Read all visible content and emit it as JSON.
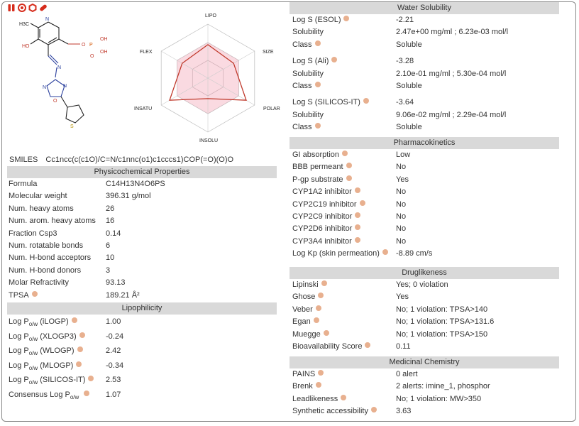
{
  "badges": [
    "pair-icon",
    "target-icon",
    "hexagon-icon",
    "pill-icon"
  ],
  "molecule": {
    "atom_labels": [
      "H3C",
      "N",
      "HO",
      "O",
      "P",
      "OH",
      "OH",
      "O",
      "N",
      "N",
      "N",
      "O",
      "S"
    ]
  },
  "radar": {
    "labels": [
      "LIPO",
      "SIZE",
      "POLAR",
      "INSOLU",
      "INSATU",
      "FLEX"
    ],
    "values": [
      0.62,
      0.55,
      0.82,
      0.38,
      0.82,
      0.55
    ]
  },
  "smiles": {
    "label": "SMILES",
    "value": "Cc1ncc(c(c1O)/C=N/c1nnc(o1)c1cccs1)COP(=O)(O)O"
  },
  "physchem": {
    "title": "Physicochemical Properties",
    "rows": [
      {
        "k": "Formula",
        "v": "C14H13N4O6PS"
      },
      {
        "k": "Molecular weight",
        "v": "396.31 g/mol"
      },
      {
        "k": "Num. heavy atoms",
        "v": "26"
      },
      {
        "k": "Num. arom. heavy atoms",
        "v": "16"
      },
      {
        "k": "Fraction Csp3",
        "v": "0.14"
      },
      {
        "k": "Num. rotatable bonds",
        "v": "6"
      },
      {
        "k": "Num. H-bond acceptors",
        "v": "10"
      },
      {
        "k": "Num. H-bond donors",
        "v": "3"
      },
      {
        "k": "Molar Refractivity",
        "v": "93.13"
      },
      {
        "k": "TPSA",
        "v": "189.21 Å²",
        "info": true
      }
    ]
  },
  "lipo": {
    "title": "Lipophilicity",
    "rows": [
      {
        "k": "Log P",
        "sub": "o/w",
        "method": "(iLOGP)",
        "v": "1.00"
      },
      {
        "k": "Log P",
        "sub": "o/w",
        "method": "(XLOGP3)",
        "v": "-0.24"
      },
      {
        "k": "Log P",
        "sub": "o/w",
        "method": "(WLOGP)",
        "v": "2.42"
      },
      {
        "k": "Log P",
        "sub": "o/w",
        "method": "(MLOGP)",
        "v": "-0.34"
      },
      {
        "k": "Log P",
        "sub": "o/w",
        "method": "(SILICOS-IT)",
        "v": "2.53"
      },
      {
        "k": "Consensus Log P",
        "sub": "o/w",
        "method": "",
        "v": "1.07"
      }
    ]
  },
  "water": {
    "title": "Water Solubility",
    "groups": [
      [
        {
          "k": "Log S (ESOL)",
          "v": "-2.21"
        },
        {
          "k": "Solubility",
          "v": "2.47e+00 mg/ml ; 6.23e-03 mol/l"
        },
        {
          "k": "Class",
          "v": "Soluble"
        }
      ],
      [
        {
          "k": "Log S (Ali)",
          "v": "-3.28"
        },
        {
          "k": "Solubility",
          "v": "2.10e-01 mg/ml ; 5.30e-04 mol/l"
        },
        {
          "k": "Class",
          "v": "Soluble"
        }
      ],
      [
        {
          "k": "Log S (SILICOS-IT)",
          "v": "-3.64"
        },
        {
          "k": "Solubility",
          "v": "9.06e-02 mg/ml ; 2.29e-04 mol/l"
        },
        {
          "k": "Class",
          "v": "Soluble"
        }
      ]
    ]
  },
  "pk": {
    "title": "Pharmacokinetics",
    "rows": [
      {
        "k": "GI absorption",
        "v": "Low"
      },
      {
        "k": "BBB permeant",
        "v": "No"
      },
      {
        "k": "P-gp substrate",
        "v": "Yes"
      },
      {
        "k": "CYP1A2 inhibitor",
        "v": "No"
      },
      {
        "k": "CYP2C19 inhibitor",
        "v": "No"
      },
      {
        "k": "CYP2C9 inhibitor",
        "v": "No"
      },
      {
        "k": "CYP2D6 inhibitor",
        "v": "No"
      },
      {
        "k": "CYP3A4 inhibitor",
        "v": "No"
      },
      {
        "k": "Log Kp (skin permeation)",
        "v": "-8.89 cm/s"
      }
    ]
  },
  "drug": {
    "title": "Druglikeness",
    "rows": [
      {
        "k": "Lipinski",
        "v": "Yes; 0 violation"
      },
      {
        "k": "Ghose",
        "v": "Yes"
      },
      {
        "k": "Veber",
        "v": "No; 1 violation: TPSA>140"
      },
      {
        "k": "Egan",
        "v": "No; 1 violation: TPSA>131.6"
      },
      {
        "k": "Muegge",
        "v": "No; 1 violation: TPSA>150"
      },
      {
        "k": "Bioavailability Score",
        "v": "0.11"
      }
    ]
  },
  "medchem": {
    "title": "Medicinal Chemistry",
    "rows": [
      {
        "k": "PAINS",
        "v": "0 alert"
      },
      {
        "k": "Brenk",
        "v": "2 alerts: imine_1, phosphor"
      },
      {
        "k": "Leadlikeness",
        "v": "No; 1 violation: MW>350"
      },
      {
        "k": "Synthetic accessibility",
        "v": "3.63"
      }
    ]
  }
}
